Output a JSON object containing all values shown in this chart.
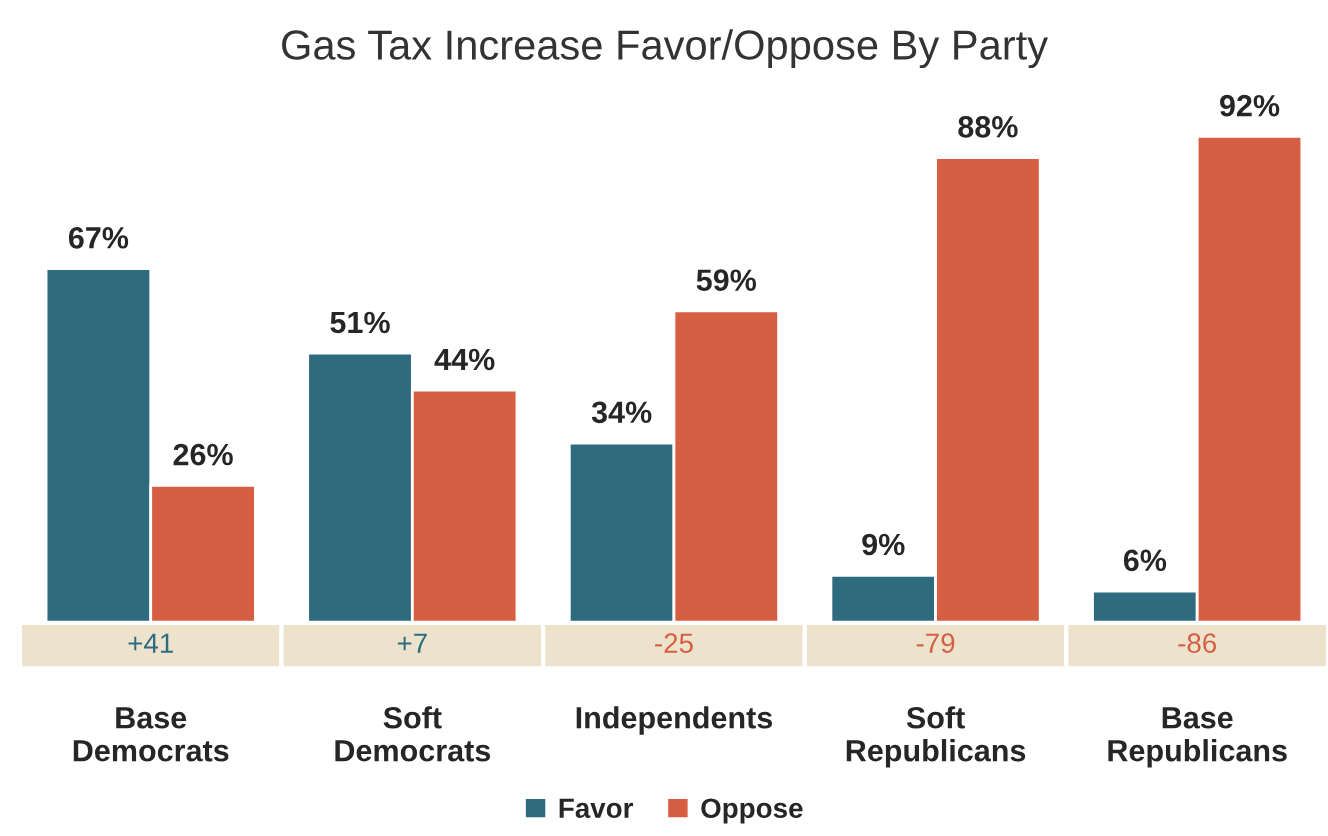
{
  "chart_data": {
    "type": "bar",
    "title": "Gas Tax Increase Favor/Oppose By Party",
    "categories": [
      "Base Democrats",
      "Soft Democrats",
      "Independents",
      "Soft Republicans",
      "Base Republicans"
    ],
    "series": [
      {
        "name": "Favor",
        "color": "#2e6b7e",
        "values": [
          67,
          51,
          34,
          9,
          6
        ],
        "value_labels": [
          "67%",
          "51%",
          "34%",
          "9%",
          "6%"
        ]
      },
      {
        "name": "Oppose",
        "color": "#d65f43",
        "values": [
          26,
          44,
          59,
          88,
          92
        ],
        "value_labels": [
          "26%",
          "44%",
          "59%",
          "88%",
          "92%"
        ]
      }
    ],
    "annotations": [
      "+41",
      "+7",
      "-25",
      "-79",
      "-86"
    ],
    "legend": "bottom",
    "grid": false
  }
}
